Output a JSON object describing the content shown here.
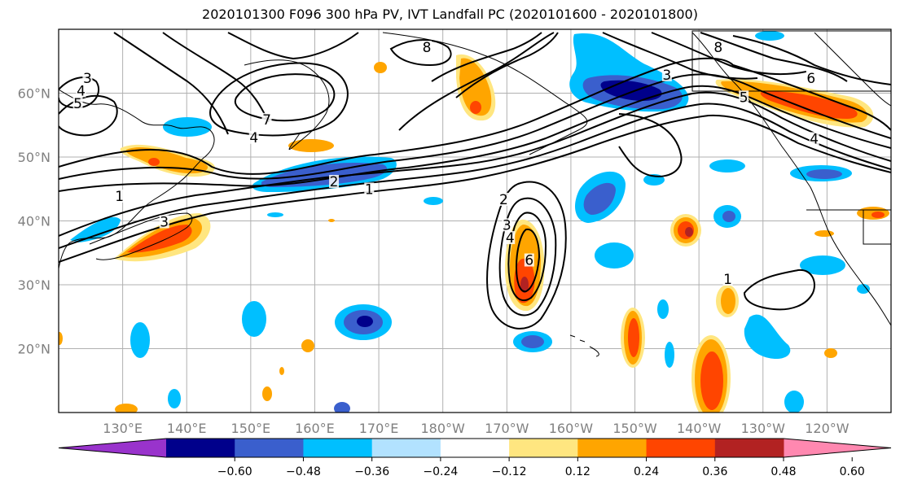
{
  "title": "2020101300 F096 300 hPa PV, IVT Landfall PC (2020101600 - 2020101800)",
  "map": {
    "projection": "equirectangular",
    "lon_range": [
      120,
      250
    ],
    "lat_range": [
      10,
      70
    ],
    "grid": true,
    "lat_ticks": [
      {
        "lat": 60,
        "label": "60°N"
      },
      {
        "lat": 50,
        "label": "50°N"
      },
      {
        "lat": 40,
        "label": "40°N"
      },
      {
        "lat": 30,
        "label": "30°N"
      },
      {
        "lat": 20,
        "label": "20°N"
      }
    ],
    "lon_ticks": [
      {
        "lon": 130,
        "label": "130°E"
      },
      {
        "lon": 140,
        "label": "140°E"
      },
      {
        "lon": 150,
        "label": "150°E"
      },
      {
        "lon": 160,
        "label": "160°E"
      },
      {
        "lon": 170,
        "label": "170°E"
      },
      {
        "lon": 180,
        "label": "180°W"
      },
      {
        "lon": 190,
        "label": "170°W"
      },
      {
        "lon": 200,
        "label": "160°W"
      },
      {
        "lon": 210,
        "label": "150°W"
      },
      {
        "lon": 220,
        "label": "140°W"
      },
      {
        "lon": 230,
        "label": "130°W"
      },
      {
        "lon": 240,
        "label": "120°W"
      }
    ]
  },
  "colorbar": {
    "colors": [
      "#9933cc",
      "#00008b",
      "#3a5fcd",
      "#00bfff",
      "#b2e2ff",
      "#ffffff",
      "#ffe680",
      "#ffa500",
      "#ff4500",
      "#b22222",
      "#ff88b0"
    ],
    "labels": [
      "−0.60",
      "−0.48",
      "−0.36",
      "−0.24",
      "−0.12",
      "0.12",
      "0.24",
      "0.36",
      "0.48",
      "0.60"
    ],
    "extend": "both"
  },
  "contour_labels": [
    {
      "text": "3",
      "lon": 124.5,
      "lat": 62.0
    },
    {
      "text": "4",
      "lon": 123.5,
      "lat": 60.0
    },
    {
      "text": "5",
      "lon": 123.0,
      "lat": 58.0
    },
    {
      "text": "7",
      "lon": 152.5,
      "lat": 55.5
    },
    {
      "text": "4",
      "lon": 150.5,
      "lat": 52.7
    },
    {
      "text": "8",
      "lon": 177.5,
      "lat": 66.8
    },
    {
      "text": "1",
      "lon": 129.5,
      "lat": 43.5
    },
    {
      "text": "3",
      "lon": 136.5,
      "lat": 39.5
    },
    {
      "text": "2",
      "lon": 163.0,
      "lat": 45.8
    },
    {
      "text": "1",
      "lon": 168.5,
      "lat": 44.6
    },
    {
      "text": "2",
      "lon": 189.5,
      "lat": 43.0
    },
    {
      "text": "3",
      "lon": 190.0,
      "lat": 39.0
    },
    {
      "text": "4",
      "lon": 190.5,
      "lat": 37.0
    },
    {
      "text": "6",
      "lon": 193.5,
      "lat": 33.5
    },
    {
      "text": "1",
      "lon": 224.5,
      "lat": 30.5
    },
    {
      "text": "3",
      "lon": 215.0,
      "lat": 62.5
    },
    {
      "text": "8",
      "lon": 223.0,
      "lat": 66.8
    },
    {
      "text": "5",
      "lon": 227.0,
      "lat": 59.0
    },
    {
      "text": "6",
      "lon": 237.5,
      "lat": 62.0
    },
    {
      "text": "4",
      "lon": 238.0,
      "lat": 52.5
    }
  ]
}
